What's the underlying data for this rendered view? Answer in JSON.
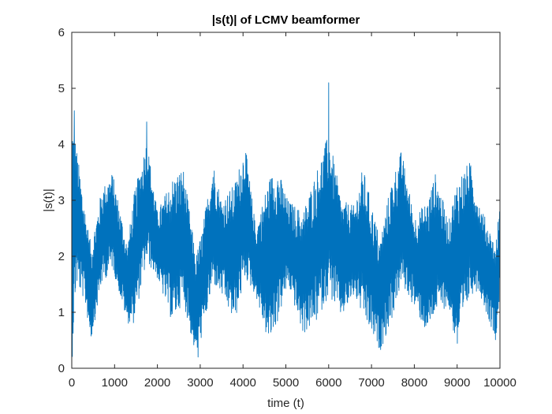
{
  "chart_data": {
    "type": "line",
    "title": "|s(t)| of LCMV beamformer",
    "xlabel": "time (t)",
    "ylabel": "|s(t)|",
    "xlim": [
      0,
      10000
    ],
    "ylim": [
      0,
      6
    ],
    "xticks": [
      0,
      1000,
      2000,
      3000,
      4000,
      5000,
      6000,
      7000,
      8000,
      9000,
      10000
    ],
    "yticks": [
      0,
      1,
      2,
      3,
      4,
      5,
      6
    ],
    "grid": false,
    "box": true,
    "line_color": "#0072BD",
    "series": [
      {
        "x": [
          0,
          100,
          300,
          450,
          700,
          950,
          1300,
          1450,
          1750,
          2000,
          2350,
          2600,
          2900,
          3050,
          3300,
          3500,
          3800,
          4050,
          4300,
          4600,
          4800,
          5050,
          5400,
          5700,
          6000,
          6300,
          6600,
          6800,
          7200,
          7450,
          7700,
          8000,
          8300,
          8500,
          8800,
          9000,
          9300,
          9500,
          9900,
          10000
        ],
        "upper": [
          4.6,
          4.0,
          2.9,
          2.2,
          3.2,
          3.5,
          2.2,
          3.1,
          4.1,
          2.8,
          3.4,
          3.6,
          2.0,
          2.5,
          3.7,
          3.0,
          3.3,
          4.0,
          2.5,
          3.4,
          3.6,
          3.0,
          2.8,
          3.5,
          4.2,
          3.0,
          2.9,
          3.6,
          2.3,
          3.3,
          3.9,
          2.7,
          3.0,
          3.5,
          2.6,
          3.4,
          3.7,
          3.0,
          2.2,
          3.0
        ],
        "lower": [
          0.0,
          1.5,
          1.2,
          0.5,
          1.5,
          1.8,
          0.8,
          0.8,
          1.9,
          1.6,
          0.8,
          1.2,
          0.2,
          0.6,
          1.5,
          1.3,
          0.8,
          1.6,
          1.3,
          0.4,
          0.8,
          1.5,
          0.6,
          0.8,
          1.3,
          0.9,
          1.3,
          0.9,
          0.3,
          0.8,
          1.5,
          1.1,
          0.6,
          1.0,
          1.1,
          0.3,
          1.3,
          1.4,
          0.5,
          1.3
        ],
        "peaks": [
          {
            "x": 60,
            "y": 4.6
          },
          {
            "x": 1750,
            "y": 4.4
          },
          {
            "x": 2950,
            "y": 0.2
          },
          {
            "x": 6000,
            "y": 5.1
          }
        ]
      }
    ]
  }
}
